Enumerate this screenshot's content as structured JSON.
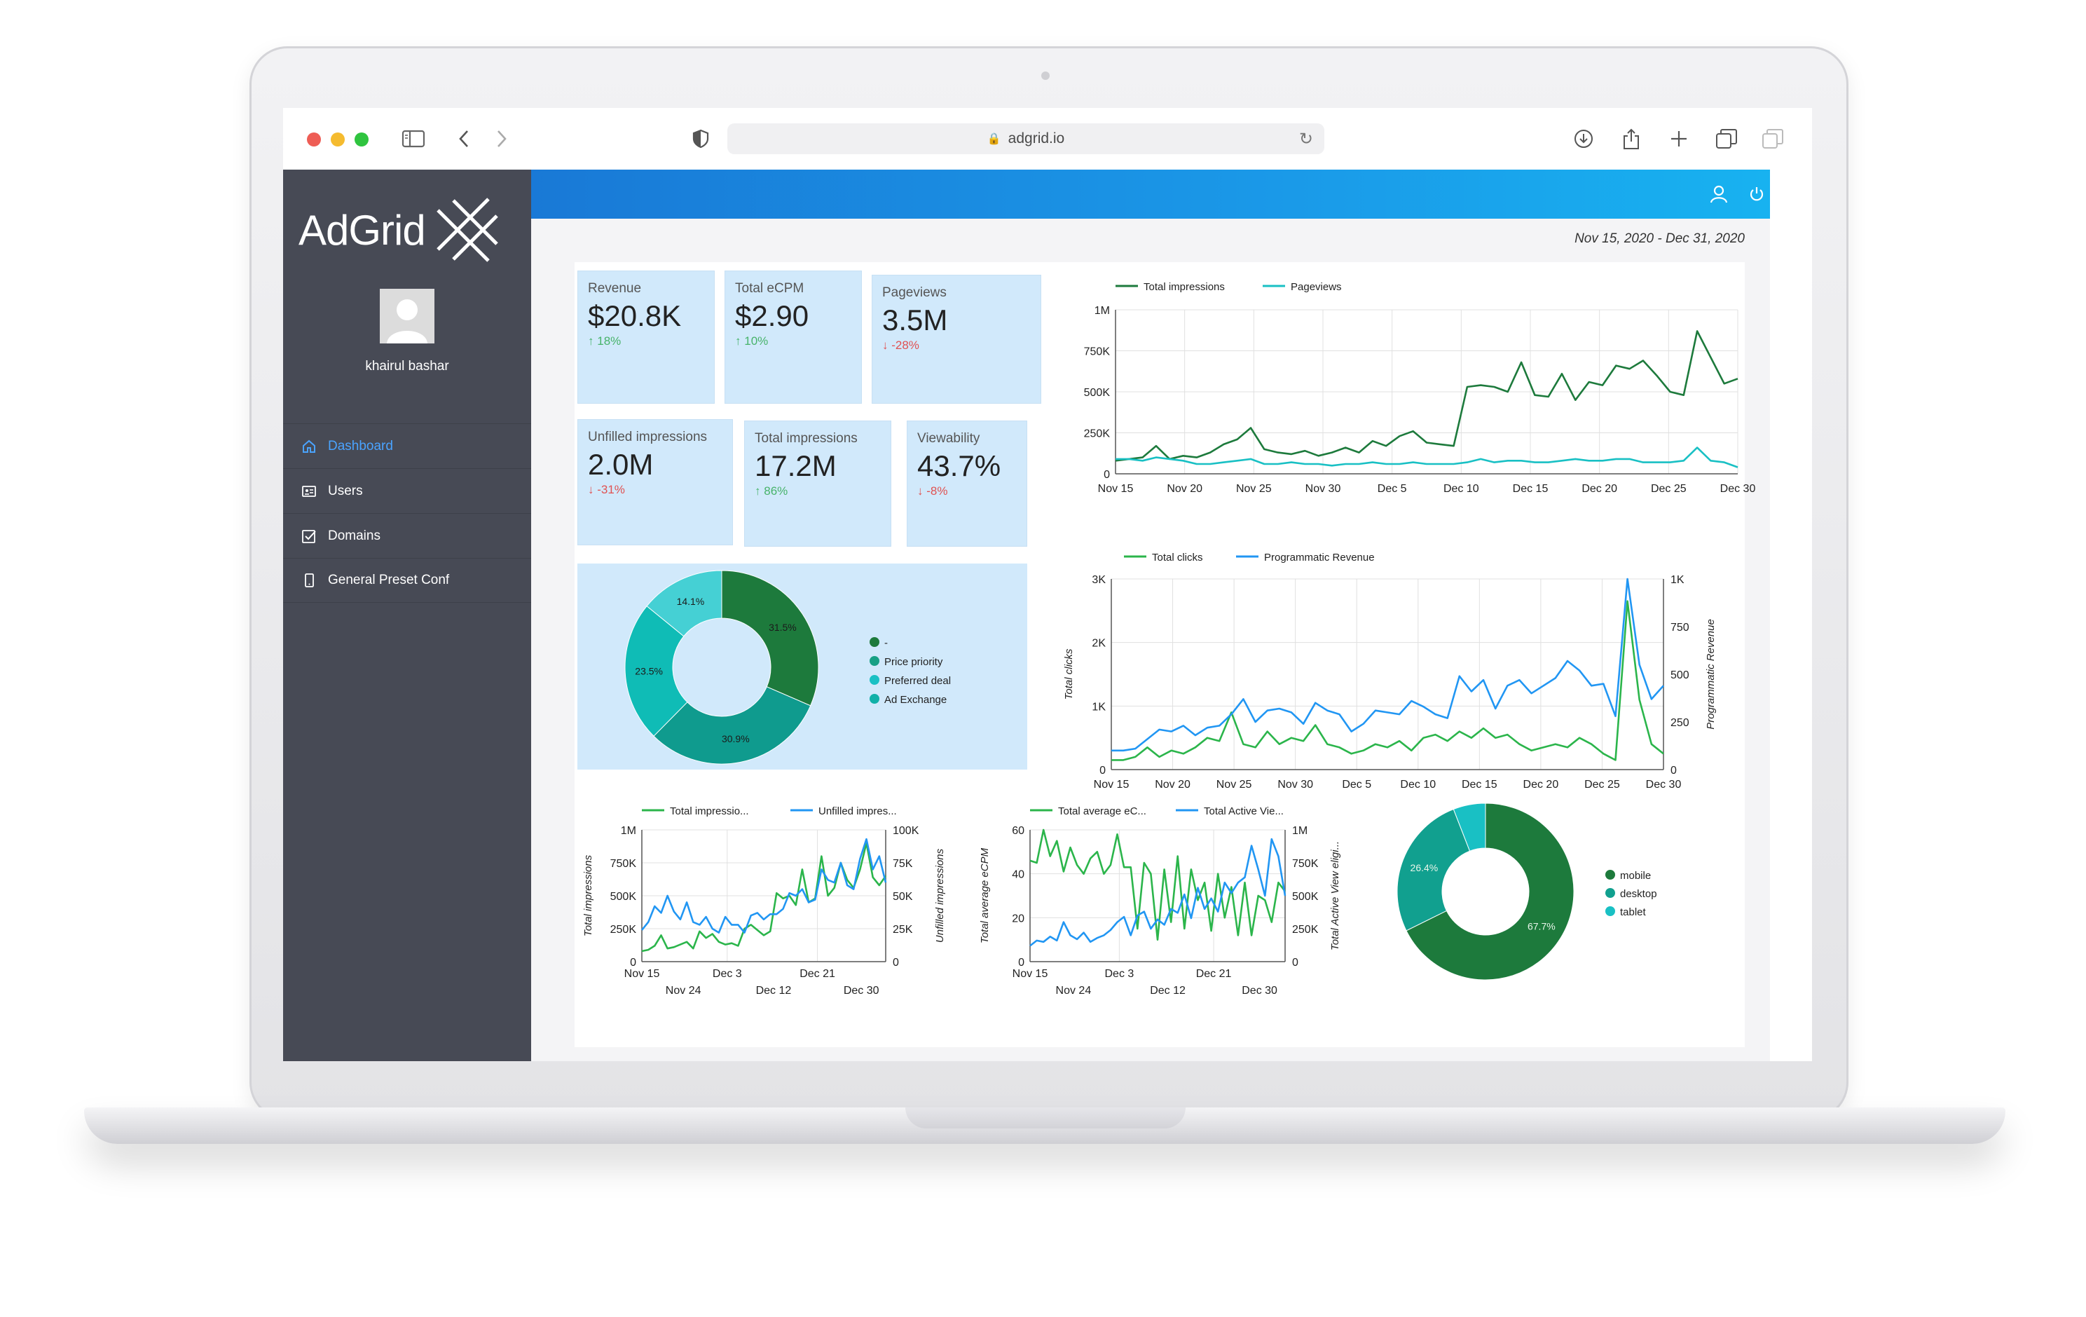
{
  "browser": {
    "url": "adgrid.io",
    "colors": {
      "close": "#ee5d55",
      "minimize": "#f5bb2f",
      "zoom": "#2fc43f"
    },
    "icons": [
      "sidebar-icon",
      "back-icon",
      "forward-icon",
      "shield-icon",
      "download-icon",
      "share-icon",
      "new-tab-icon",
      "tabs-icon"
    ]
  },
  "sidebar": {
    "logo": "AdGrid",
    "user": "khairul bashar",
    "items": [
      {
        "label": "Dashboard",
        "icon": "home-icon",
        "active": true
      },
      {
        "label": "Users",
        "icon": "id-card-icon",
        "active": false
      },
      {
        "label": "Domains",
        "icon": "checkbox-icon",
        "active": false
      },
      {
        "label": "General Preset Conf",
        "icon": "phone-icon",
        "active": false
      }
    ]
  },
  "header": {
    "icons": [
      "user-icon",
      "power-icon"
    ]
  },
  "date_range": "Nov 15, 2020 - Dec 31, 2020",
  "kpis": [
    {
      "label": "Revenue",
      "value": "$20.8K",
      "delta": "18%",
      "dir": "up"
    },
    {
      "label": "Total eCPM",
      "value": "$2.90",
      "delta": "10%",
      "dir": "up"
    },
    {
      "label": "Pageviews",
      "value": "3.5M",
      "delta": "-28%",
      "dir": "down"
    },
    {
      "label": "Unfilled impressions",
      "value": "2.0M",
      "delta": "-31%",
      "dir": "down"
    },
    {
      "label": "Total impressions",
      "value": "17.2M",
      "delta": "86%",
      "dir": "up"
    },
    {
      "label": "Viewability",
      "value": "43.7%",
      "delta": "-8%",
      "dir": "down"
    }
  ],
  "colors": {
    "dark_green": "#1d7a3c",
    "green": "#2bb54b",
    "teal": "#10b0a8",
    "blue": "#2196f3",
    "cyan": "#19c0c4",
    "kpi_bg": "#d1e9fb"
  },
  "chart_data": [
    {
      "id": "deal-donut",
      "type": "pie",
      "legend": [
        "-",
        "Price priority",
        "Preferred deal",
        "Ad Exchange"
      ],
      "values": [
        31.5,
        30.9,
        23.5,
        14.1
      ],
      "labels": [
        "31.5%",
        "30.9%",
        "23.5%",
        "14.1%"
      ],
      "colors": [
        "#1d7a3c",
        "#0f9b8e",
        "#0fbcb6",
        "#45d0d4"
      ],
      "legend_colors": [
        "#1d7a3c",
        "#16a085",
        "#19c0c4",
        "#10b0a8"
      ]
    },
    {
      "id": "device-donut",
      "type": "pie",
      "legend": [
        "mobile",
        "desktop",
        "tablet"
      ],
      "values": [
        67.7,
        26.4,
        5.9
      ],
      "labels": [
        "67.7%",
        "26.4%",
        ""
      ],
      "colors": [
        "#1d7a3c",
        "#11a08f",
        "#19c0c4"
      ]
    },
    {
      "id": "impressions-pageviews",
      "type": "line",
      "legend": [
        "Total impressions",
        "Pageviews"
      ],
      "x_ticks": [
        "Nov 15",
        "Nov 20",
        "Nov 25",
        "Nov 30",
        "Dec 5",
        "Dec 10",
        "Dec 15",
        "Dec 20",
        "Dec 25",
        "Dec 30"
      ],
      "y_ticks": [
        "0",
        "250K",
        "500K",
        "750K",
        "1M"
      ],
      "ylim": [
        0,
        1000000
      ],
      "series": [
        {
          "name": "Total impressions",
          "color": "#1d7a3c",
          "values": [
            80000,
            90000,
            100000,
            170000,
            90000,
            110000,
            100000,
            130000,
            180000,
            210000,
            280000,
            150000,
            130000,
            120000,
            140000,
            110000,
            130000,
            160000,
            130000,
            200000,
            170000,
            230000,
            260000,
            190000,
            180000,
            170000,
            530000,
            540000,
            530000,
            500000,
            680000,
            480000,
            470000,
            610000,
            450000,
            560000,
            540000,
            660000,
            640000,
            690000,
            600000,
            500000,
            480000,
            870000,
            710000,
            550000,
            580000
          ]
        },
        {
          "name": "Pageviews",
          "color": "#19c0c4",
          "values": [
            90000,
            90000,
            80000,
            100000,
            90000,
            80000,
            60000,
            60000,
            70000,
            80000,
            90000,
            60000,
            60000,
            70000,
            60000,
            60000,
            50000,
            60000,
            60000,
            70000,
            60000,
            60000,
            70000,
            60000,
            60000,
            60000,
            70000,
            90000,
            70000,
            80000,
            80000,
            70000,
            70000,
            80000,
            90000,
            80000,
            80000,
            90000,
            90000,
            70000,
            70000,
            70000,
            80000,
            160000,
            80000,
            70000,
            40000
          ]
        }
      ]
    },
    {
      "id": "clicks-revenue",
      "type": "line",
      "legend": [
        "Total clicks",
        "Programmatic Revenue"
      ],
      "ylabel": "Total clicks",
      "y2label": "Programmatic Revenue",
      "x_ticks": [
        "Nov 15",
        "Nov 20",
        "Nov 25",
        "Nov 30",
        "Dec 5",
        "Dec 10",
        "Dec 15",
        "Dec 20",
        "Dec 25",
        "Dec 30"
      ],
      "y_ticks": [
        "0",
        "1K",
        "2K",
        "3K"
      ],
      "y2_ticks": [
        "0",
        "250",
        "500",
        "750",
        "1K"
      ],
      "ylim": [
        0,
        3000
      ],
      "y2lim": [
        0,
        1000
      ],
      "series": [
        {
          "name": "Total clicks",
          "color": "#2bb54b",
          "axis": "left",
          "values": [
            150,
            150,
            200,
            350,
            200,
            300,
            250,
            350,
            500,
            450,
            900,
            400,
            350,
            600,
            400,
            500,
            450,
            700,
            400,
            350,
            250,
            300,
            400,
            350,
            450,
            300,
            500,
            550,
            450,
            600,
            500,
            650,
            500,
            550,
            400,
            300,
            350,
            400,
            350,
            500,
            400,
            250,
            150,
            2650,
            1100,
            400,
            250
          ]
        },
        {
          "name": "Programmatic Revenue",
          "color": "#2196f3",
          "axis": "right",
          "values": [
            100,
            100,
            110,
            160,
            210,
            200,
            230,
            180,
            220,
            230,
            290,
            370,
            250,
            310,
            320,
            300,
            240,
            350,
            310,
            290,
            200,
            240,
            310,
            300,
            290,
            360,
            330,
            290,
            270,
            490,
            410,
            470,
            320,
            440,
            470,
            400,
            440,
            480,
            570,
            520,
            440,
            450,
            280,
            1000,
            550,
            370,
            440
          ]
        }
      ]
    },
    {
      "id": "impressions-unfilled",
      "type": "line",
      "legend": [
        "Total impressio...",
        "Unfilled impres..."
      ],
      "ylabel": "Total impressions",
      "y2label": "Unfilled impressions",
      "x_ticks_top": [
        "Nov 15",
        "Dec 3",
        "Dec 21"
      ],
      "x_ticks_bottom": [
        "Nov 24",
        "Dec 12",
        "Dec 30"
      ],
      "y_ticks": [
        "0",
        "250K",
        "500K",
        "750K",
        "1M"
      ],
      "y2_ticks": [
        "0",
        "25K",
        "50K",
        "75K",
        "100K"
      ],
      "ylim": [
        0,
        1000000
      ],
      "y2lim": [
        0,
        100000
      ],
      "series": [
        {
          "name": "Total impressio...",
          "color": "#2bb54b",
          "axis": "left",
          "values": [
            80000,
            90000,
            120000,
            200000,
            100000,
            110000,
            130000,
            150000,
            100000,
            230000,
            180000,
            210000,
            150000,
            130000,
            140000,
            120000,
            250000,
            280000,
            240000,
            200000,
            230000,
            520000,
            480000,
            500000,
            430000,
            700000,
            450000,
            480000,
            800000,
            500000,
            560000,
            750000,
            620000,
            560000,
            700000,
            900000,
            640000,
            580000,
            650000
          ]
        },
        {
          "name": "Unfilled impres...",
          "color": "#2196f3",
          "axis": "right",
          "values": [
            24000,
            30000,
            42000,
            37000,
            50000,
            38000,
            32000,
            45000,
            30000,
            28000,
            34000,
            25000,
            22000,
            34000,
            28000,
            28000,
            22000,
            35000,
            37000,
            32000,
            36000,
            36000,
            40000,
            52000,
            50000,
            55000,
            45000,
            47000,
            70000,
            62000,
            60000,
            75000,
            58000,
            55000,
            78000,
            93000,
            70000,
            80000,
            60000
          ]
        }
      ]
    },
    {
      "id": "ecpm-viewable",
      "type": "line",
      "legend": [
        "Total average eC...",
        "Total Active Vie..."
      ],
      "ylabel": "Total average eCPM",
      "y2label": "Total Active View eligi...",
      "x_ticks_top": [
        "Nov 15",
        "Dec 3",
        "Dec 21"
      ],
      "x_ticks_bottom": [
        "Nov 24",
        "Dec 12",
        "Dec 30"
      ],
      "y_ticks": [
        "0",
        "20",
        "40",
        "60"
      ],
      "y2_ticks": [
        "0",
        "250K",
        "500K",
        "750K",
        "1M"
      ],
      "ylim": [
        0,
        60
      ],
      "y2lim": [
        0,
        1000000
      ],
      "series": [
        {
          "name": "Total average eC...",
          "color": "#2bb54b",
          "axis": "left",
          "values": [
            46,
            45,
            60,
            48,
            55,
            41,
            52,
            44,
            40,
            47,
            50,
            40,
            44,
            58,
            43,
            43,
            15,
            45,
            40,
            10,
            42,
            18,
            48,
            15,
            42,
            28,
            36,
            14,
            40,
            20,
            34,
            12,
            36,
            12,
            30,
            28,
            18,
            36,
            32
          ]
        },
        {
          "name": "Total Active Vie...",
          "color": "#2196f3",
          "axis": "right",
          "values": [
            120000,
            160000,
            150000,
            190000,
            160000,
            300000,
            200000,
            170000,
            220000,
            150000,
            180000,
            200000,
            240000,
            300000,
            340000,
            200000,
            350000,
            380000,
            250000,
            320000,
            280000,
            400000,
            370000,
            510000,
            330000,
            560000,
            400000,
            480000,
            380000,
            600000,
            520000,
            600000,
            640000,
            880000,
            700000,
            500000,
            930000,
            800000,
            500000
          ]
        }
      ]
    }
  ]
}
